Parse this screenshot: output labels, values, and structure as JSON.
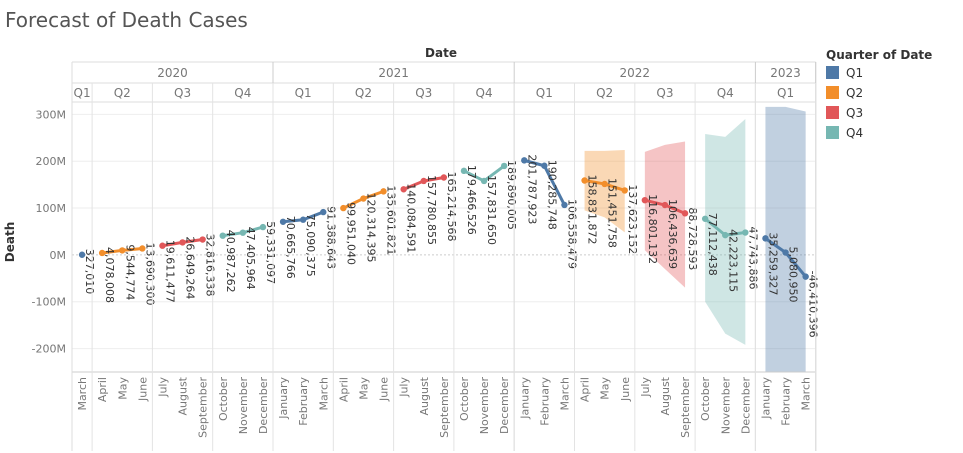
{
  "title": "Forecast of Death Cases",
  "chart_data": {
    "type": "line",
    "title": "Forecast of Death Cases",
    "column_header": "Date",
    "ylabel": "Death",
    "ylim": [
      -250000000,
      320000000
    ],
    "yticks": [
      300000000,
      200000000,
      100000000,
      0,
      -100000000,
      -200000000
    ],
    "ytick_labels": [
      "300M",
      "200M",
      "100M",
      "0M",
      "-100M",
      "-200M"
    ],
    "years": [
      {
        "label": "2020",
        "quarters": [
          "Q1",
          "Q2",
          "Q3",
          "Q4"
        ]
      },
      {
        "label": "2021",
        "quarters": [
          "Q1",
          "Q2",
          "Q3",
          "Q4"
        ]
      },
      {
        "label": "2022",
        "quarters": [
          "Q1",
          "Q2",
          "Q3",
          "Q4"
        ]
      },
      {
        "label": "2023",
        "quarters": [
          "Q1"
        ]
      }
    ],
    "months": [
      "March",
      "April",
      "May",
      "June",
      "July",
      "August",
      "September",
      "October",
      "November",
      "December",
      "January",
      "February",
      "March",
      "April",
      "May",
      "June",
      "July",
      "August",
      "September",
      "October",
      "November",
      "December",
      "January",
      "February",
      "March",
      "April",
      "May",
      "June",
      "July",
      "August",
      "September",
      "October",
      "November",
      "December",
      "January",
      "February",
      "March"
    ],
    "legend": {
      "title": "Quarter of Date",
      "items": [
        {
          "label": "Q1",
          "color": "#4e79a7"
        },
        {
          "label": "Q2",
          "color": "#f28e2b"
        },
        {
          "label": "Q3",
          "color": "#e15759"
        },
        {
          "label": "Q4",
          "color": "#76b7b2"
        }
      ]
    },
    "series": [
      {
        "quarter": "Q1",
        "months": [
          "March"
        ],
        "values": [
          327010
        ],
        "labels": [
          "327,010"
        ]
      },
      {
        "quarter": "Q2",
        "months": [
          "April",
          "May",
          "June"
        ],
        "values": [
          4078008,
          9544774,
          13690300
        ],
        "labels": [
          "4,078,008",
          "9,544,774",
          "13,690,300"
        ]
      },
      {
        "quarter": "Q3",
        "months": [
          "July",
          "August",
          "September"
        ],
        "values": [
          19611477,
          26649264,
          32816338
        ],
        "labels": [
          "19,611,477",
          "26,649,264",
          "32,816,338"
        ]
      },
      {
        "quarter": "Q4",
        "months": [
          "October",
          "November",
          "December"
        ],
        "values": [
          40987262,
          47405964,
          59331097
        ],
        "labels": [
          "40,987,262",
          "47,405,964",
          "59,331,097"
        ]
      },
      {
        "quarter": "Q1",
        "months": [
          "January",
          "February",
          "March"
        ],
        "values": [
          70665766,
          75090375,
          91388643
        ],
        "labels": [
          "70,665,766",
          "75,090,375",
          "91,388,643"
        ]
      },
      {
        "quarter": "Q2",
        "months": [
          "April",
          "May",
          "June"
        ],
        "values": [
          99951040,
          120314395,
          135601821
        ],
        "labels": [
          "99,951,040",
          "120,314,395",
          "135,601,821"
        ]
      },
      {
        "quarter": "Q3",
        "months": [
          "July",
          "August",
          "September"
        ],
        "values": [
          140084591,
          157780855,
          165214568
        ],
        "labels": [
          "140,084,591",
          "157,780,855",
          "165,214,568"
        ]
      },
      {
        "quarter": "Q4",
        "months": [
          "October",
          "November",
          "December"
        ],
        "values": [
          179466526,
          157831650,
          189890005
        ],
        "labels": [
          "179,466,526",
          "157,831,650",
          "189,890,005"
        ]
      },
      {
        "quarter": "Q1",
        "months": [
          "January",
          "February",
          "March"
        ],
        "values": [
          201787923,
          190285748,
          106558479
        ],
        "labels": [
          "201,787,923",
          "190,285,748",
          "106,558,479"
        ]
      },
      {
        "quarter": "Q2",
        "months": [
          "April",
          "May",
          "June"
        ],
        "values": [
          158831872,
          151451758,
          137623152
        ],
        "labels": [
          "158,831,872",
          "151,451,758",
          "137,623,152"
        ]
      },
      {
        "quarter": "Q3",
        "months": [
          "July",
          "August",
          "September"
        ],
        "values": [
          116801132,
          106436639,
          88728593
        ],
        "labels": [
          "116,801,132",
          "106,436,639",
          "88,728,593"
        ]
      },
      {
        "quarter": "Q4",
        "months": [
          "October",
          "November",
          "December"
        ],
        "values": [
          77112438,
          42223115,
          47743886
        ],
        "labels": [
          "77,112,438",
          "42,223,115",
          "47,743,886"
        ]
      },
      {
        "quarter": "Q1",
        "months": [
          "January",
          "February",
          "March"
        ],
        "values": [
          35259327,
          5080950,
          -46410396
        ],
        "labels": [
          "35,259,327",
          "5,080,950",
          "-46,410,396"
        ]
      }
    ],
    "forecast_bands": [
      {
        "quarter": "Q2",
        "months": [
          "April",
          "May",
          "June"
        ],
        "upper": [
          222000000,
          222000000,
          224000000
        ],
        "lower": [
          95000000,
          80000000,
          48000000
        ]
      },
      {
        "quarter": "Q3",
        "months": [
          "July",
          "August",
          "September"
        ],
        "upper": [
          220000000,
          235000000,
          242000000
        ],
        "lower": [
          10000000,
          -30000000,
          -70000000
        ]
      },
      {
        "quarter": "Q4",
        "months": [
          "October",
          "November",
          "December"
        ],
        "upper": [
          258000000,
          252000000,
          290000000
        ],
        "lower": [
          -100000000,
          -168000000,
          -192000000
        ]
      },
      {
        "quarter": "Q1",
        "months": [
          "January",
          "February",
          "March"
        ],
        "upper": [
          316000000,
          316000000,
          306000000
        ],
        "lower": [
          -250000000,
          -250000000,
          -250000000
        ]
      }
    ]
  }
}
